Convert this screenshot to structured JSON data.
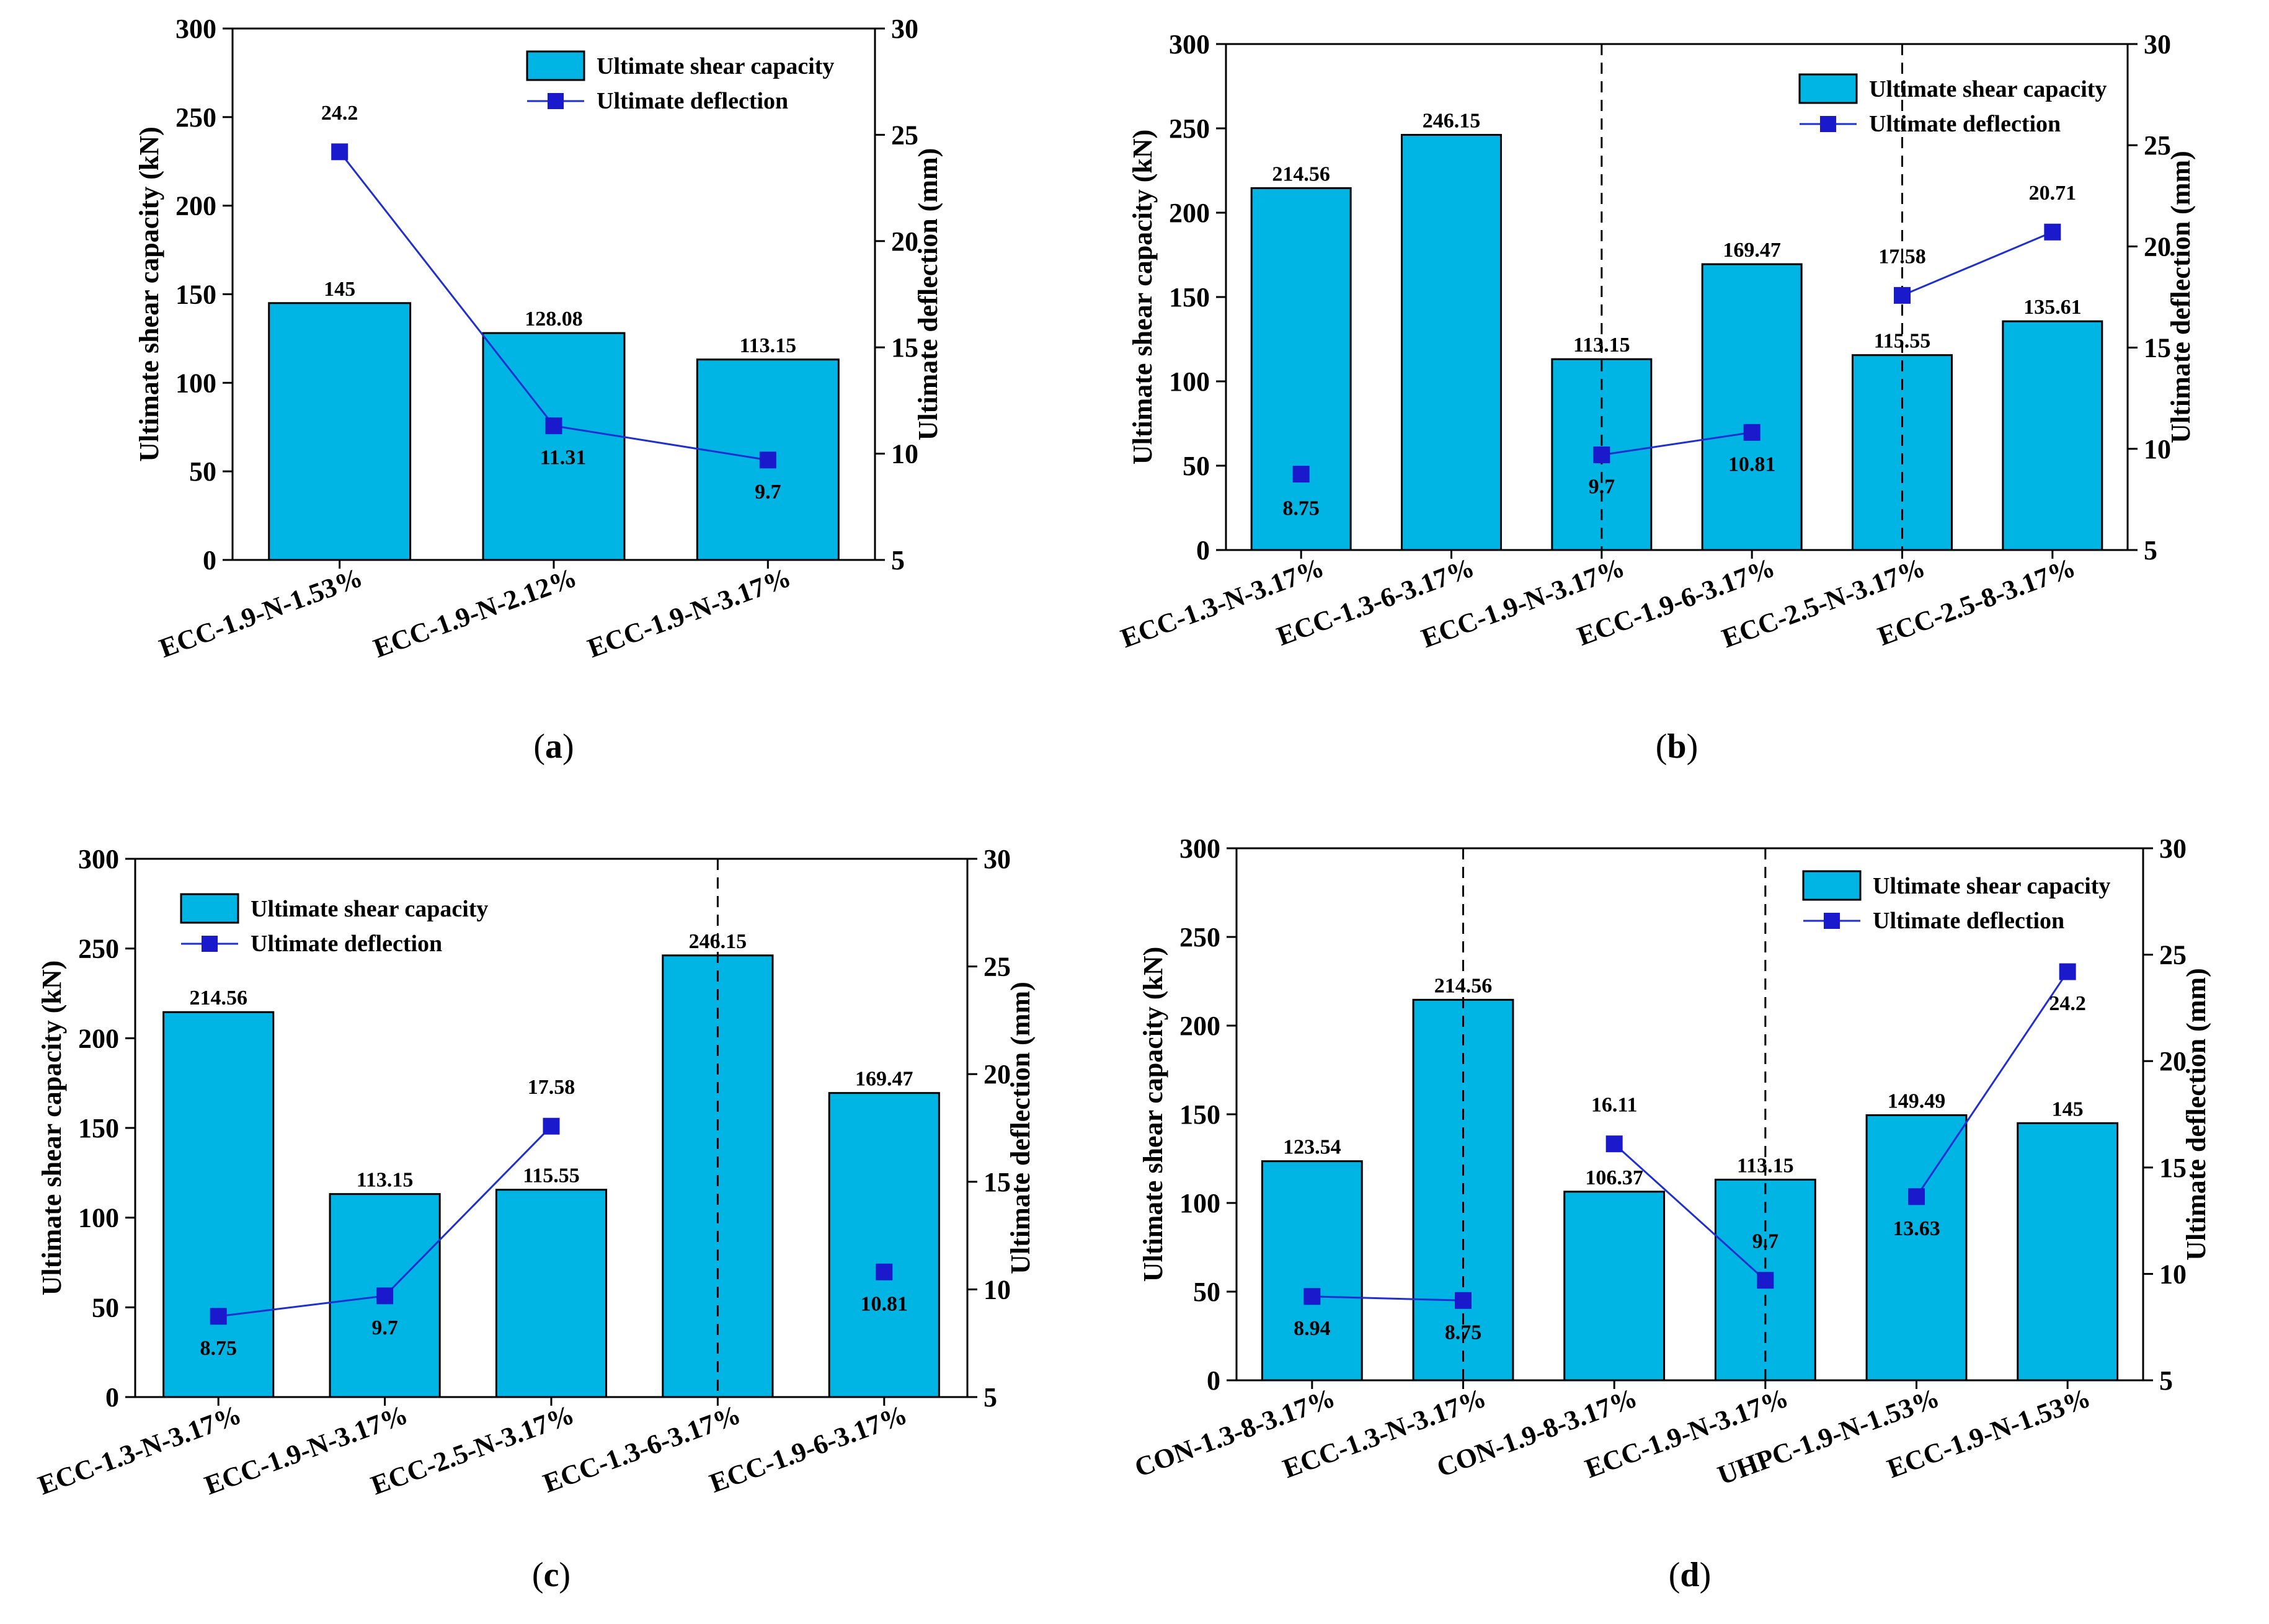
{
  "colors": {
    "bar": "#00b4e4",
    "bar_edge": "#000000",
    "line": "#1f2fd0",
    "marker": "#1a1acc"
  },
  "chart_data": [
    {
      "type": "bar",
      "panel_label": "a",
      "categories": [
        "ECC-1.9-N-1.53%",
        "ECC-1.9-N-2.12%",
        "ECC-1.9-N-3.17%"
      ],
      "series": [
        {
          "name": "Ultimate shear capacity",
          "axis": "left",
          "values": [
            145,
            128.08,
            113.15
          ],
          "labels": [
            "145",
            "128.08",
            "113.15"
          ]
        },
        {
          "name": "Ultimate deflection",
          "axis": "right",
          "type": "line",
          "values": [
            24.2,
            11.31,
            9.7
          ],
          "labels": [
            "24.2",
            "11.31",
            "9.7"
          ]
        }
      ],
      "ylabel": "Ultimate shear capacity (kN)",
      "y2label": "Ultimate deflection (mm)",
      "ylim": [
        0,
        300
      ],
      "y2lim": [
        5,
        30
      ],
      "yticks": [
        "0",
        "50",
        "100",
        "150",
        "200",
        "250",
        "300"
      ],
      "y2ticks": [
        "5",
        "10",
        "15",
        "20",
        "25",
        "30"
      ],
      "groups": [
        [
          0,
          1,
          2
        ]
      ],
      "connect_line": true,
      "legend": "top-right"
    },
    {
      "type": "bar",
      "panel_label": "b",
      "categories": [
        "ECC-1.3-N-3.17%",
        "ECC-1.3-6-3.17%",
        "ECC-1.9-N-3.17%",
        "ECC-1.9-6-3.17%",
        "ECC-2.5-N-3.17%",
        "ECC-2.5-8-3.17%"
      ],
      "series": [
        {
          "name": "Ultimate shear capacity",
          "axis": "left",
          "values": [
            214.56,
            246.15,
            113.15,
            169.47,
            115.55,
            135.61
          ],
          "labels": [
            "214.56",
            "246.15",
            "113.15",
            "169.47",
            "115.55",
            "135.61"
          ]
        },
        {
          "name": "Ultimate deflection",
          "axis": "right",
          "type": "line",
          "values": [
            8.75,
            null,
            9.7,
            10.81,
            17.58,
            20.71
          ],
          "labels": [
            "8.75",
            "",
            "9.7",
            "10.81",
            "17.58",
            "20.71"
          ]
        }
      ],
      "ylabel": "Ultimate shear capacity (kN)",
      "y2label": "Ultimate deflection (mm)",
      "ylim": [
        0,
        300
      ],
      "y2lim": [
        5,
        30
      ],
      "yticks": [
        "0",
        "50",
        "100",
        "150",
        "200",
        "250",
        "300"
      ],
      "y2ticks": [
        "5",
        "10",
        "15",
        "20",
        "25",
        "30"
      ],
      "groups": [
        [
          0
        ],
        [
          2,
          3
        ],
        [
          4,
          5
        ]
      ],
      "connect_line": true,
      "legend": "top-right"
    },
    {
      "type": "bar",
      "panel_label": "c",
      "categories": [
        "ECC-1.3-N-3.17%",
        "ECC-1.9-N-3.17%",
        "ECC-2.5-N-3.17%",
        "ECC-1.3-6-3.17%",
        "ECC-1.9-6-3.17%"
      ],
      "series": [
        {
          "name": "Ultimate shear capacity",
          "axis": "left",
          "values": [
            214.56,
            113.15,
            115.55,
            246.15,
            169.47
          ],
          "labels": [
            "214.56",
            "113.15",
            "115.55",
            "246.15",
            "169.47"
          ]
        },
        {
          "name": "Ultimate deflection",
          "axis": "right",
          "type": "line",
          "values": [
            8.75,
            9.7,
            17.58,
            null,
            10.81
          ],
          "labels": [
            "8.75",
            "9.7",
            "17.58",
            "",
            "10.81"
          ]
        }
      ],
      "ylabel": "Ultimate shear capacity (kN)",
      "y2label": "Ultimate deflection (mm)",
      "ylim": [
        0,
        300
      ],
      "y2lim": [
        5,
        30
      ],
      "yticks": [
        "0",
        "50",
        "100",
        "150",
        "200",
        "250",
        "300"
      ],
      "y2ticks": [
        "5",
        "10",
        "15",
        "20",
        "25",
        "30"
      ],
      "groups": [
        [
          0,
          1,
          2
        ],
        [
          4
        ]
      ],
      "connect_line": true,
      "legend": "top-left"
    },
    {
      "type": "bar",
      "panel_label": "d",
      "categories": [
        "CON-1.3-8-3.17%",
        "ECC-1.3-N-3.17%",
        "CON-1.9-8-3.17%",
        "ECC-1.9-N-3.17%",
        "UHPC-1.9-N-1.53%",
        "ECC-1.9-N-1.53%"
      ],
      "series": [
        {
          "name": "Ultimate shear capacity",
          "axis": "left",
          "values": [
            123.54,
            214.56,
            106.37,
            113.15,
            149.49,
            145
          ],
          "labels": [
            "123.54",
            "214.56",
            "106.37",
            "113.15",
            "149.49",
            "145"
          ]
        },
        {
          "name": "Ultimate deflection",
          "axis": "right",
          "type": "line",
          "values": [
            8.94,
            8.75,
            16.11,
            9.7,
            13.63,
            24.2
          ],
          "labels": [
            "8.94",
            "8.75",
            "16.11",
            "9.7",
            "13.63",
            "24.2"
          ]
        }
      ],
      "ylabel": "Ultimate shear capacity (kN)",
      "y2label": "Ultimate deflection (mm)",
      "ylim": [
        0,
        300
      ],
      "y2lim": [
        5,
        30
      ],
      "yticks": [
        "0",
        "50",
        "100",
        "150",
        "200",
        "250",
        "300"
      ],
      "y2ticks": [
        "5",
        "10",
        "15",
        "20",
        "25",
        "30"
      ],
      "groups": [
        [
          0,
          1
        ],
        [
          2,
          3
        ],
        [
          4,
          5
        ]
      ],
      "connect_line": true,
      "legend": "top-right"
    }
  ]
}
